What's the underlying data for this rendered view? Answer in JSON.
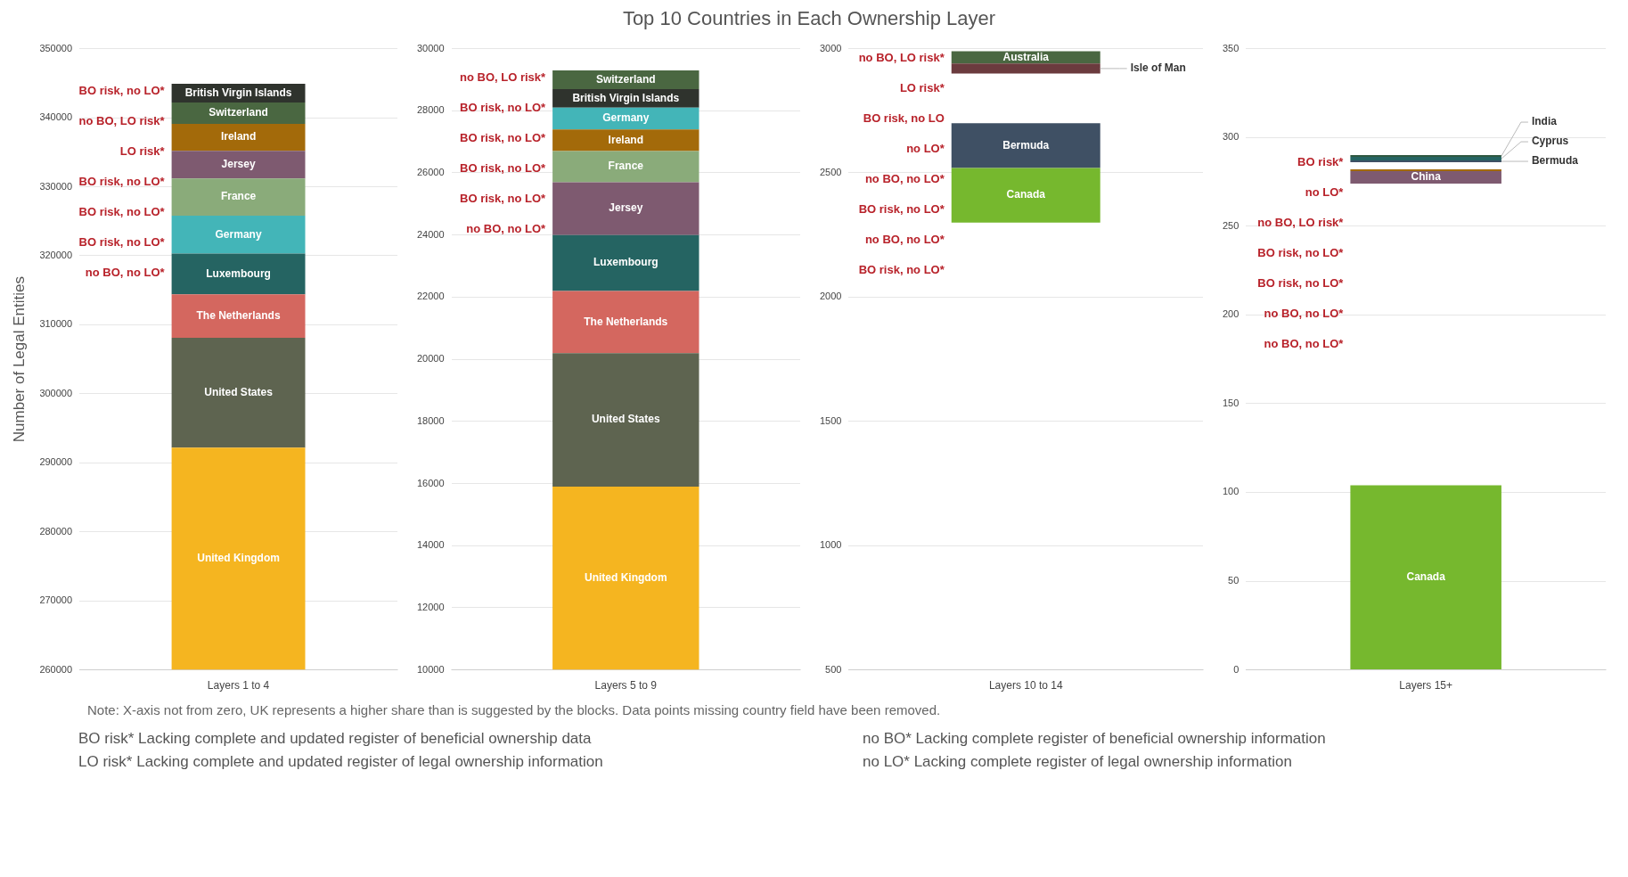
{
  "chart_data": [
    {
      "type": "other",
      "title": "Top 10 Countries in Each Ownership Layer"
    },
    {
      "type": "bar",
      "ylabel": "Number of Legal Entities",
      "categories": [
        "Layers 1 to 4"
      ],
      "ylim": [
        260000,
        350000
      ],
      "yticks": [
        260000,
        270000,
        280000,
        290000,
        300000,
        310000,
        320000,
        330000,
        340000,
        350000
      ],
      "grid": "y",
      "legend": false,
      "series": [
        {
          "name": "United Kingdom",
          "color": "#f5b520",
          "values": [
            32200
          ],
          "base": [
            260000
          ]
        },
        {
          "name": "United States",
          "color": "#5e6450",
          "values": [
            15900
          ],
          "base": [
            292200
          ]
        },
        {
          "name": "The Netherlands",
          "color": "#d4675f",
          "values": [
            6300
          ],
          "base": [
            308100
          ]
        },
        {
          "name": "Luxembourg",
          "color": "#256462",
          "values": [
            5900
          ],
          "base": [
            314400
          ]
        },
        {
          "name": "Germany",
          "color": "#43b5b8",
          "values": [
            5500
          ],
          "base": [
            320300
          ]
        },
        {
          "name": "France",
          "color": "#8aab7a",
          "values": [
            5400
          ],
          "base": [
            325800
          ]
        },
        {
          "name": "Jersey",
          "color": "#7e5a70",
          "values": [
            4000
          ],
          "base": [
            331200
          ]
        },
        {
          "name": "Ireland",
          "color": "#a36a0a",
          "values": [
            3900
          ],
          "base": [
            335200
          ]
        },
        {
          "name": "Switzerland",
          "color": "#4a6741",
          "values": [
            3100
          ],
          "base": [
            339100
          ]
        },
        {
          "name": "British Virgin Islands",
          "color": "#2f332d",
          "values": [
            2700
          ],
          "base": [
            342200
          ]
        }
      ],
      "annotations": [
        "BO risk, no LO*",
        "no BO, LO risk*",
        "LO risk*",
        "BO risk, no LO*",
        "BO risk, no LO*",
        "BO risk, no LO*",
        "no BO, no LO*"
      ]
    },
    {
      "type": "bar",
      "categories": [
        "Layers 5 to 9"
      ],
      "ylim": [
        10000,
        30000
      ],
      "yticks": [
        10000,
        12000,
        14000,
        16000,
        18000,
        20000,
        22000,
        24000,
        26000,
        28000,
        30000
      ],
      "grid": "y",
      "legend": false,
      "series": [
        {
          "name": "United Kingdom",
          "color": "#f5b520",
          "values": [
            5900
          ],
          "base": [
            10000
          ]
        },
        {
          "name": "United States",
          "color": "#5e6450",
          "values": [
            4300
          ],
          "base": [
            15900
          ]
        },
        {
          "name": "The Netherlands",
          "color": "#d4675f",
          "values": [
            2000
          ],
          "base": [
            20200
          ]
        },
        {
          "name": "Luxembourg",
          "color": "#256462",
          "values": [
            1800
          ],
          "base": [
            22200
          ]
        },
        {
          "name": "Jersey",
          "color": "#7e5a70",
          "values": [
            1700
          ],
          "base": [
            24000
          ]
        },
        {
          "name": "France",
          "color": "#8aab7a",
          "values": [
            1000
          ],
          "base": [
            25700
          ]
        },
        {
          "name": "Ireland",
          "color": "#a36a0a",
          "values": [
            700
          ],
          "base": [
            26700
          ]
        },
        {
          "name": "Germany",
          "color": "#43b5b8",
          "values": [
            700
          ],
          "base": [
            27400
          ]
        },
        {
          "name": "British Virgin Islands",
          "color": "#2f332d",
          "values": [
            600
          ],
          "base": [
            28100
          ]
        },
        {
          "name": "Switzerland",
          "color": "#4a6741",
          "values": [
            600
          ],
          "base": [
            28700
          ]
        }
      ],
      "annotations": [
        "no BO, LO risk*",
        "BO risk, no LO*",
        "BO risk, no LO*",
        "BO risk, no LO*",
        "BO risk, no LO*",
        "no BO, no LO*"
      ]
    },
    {
      "type": "bar",
      "categories": [
        "Layers 10 to 14"
      ],
      "ylim": [
        500,
        3000
      ],
      "yticks": [
        500,
        1000,
        1500,
        2000,
        2500,
        3000
      ],
      "grid": "y",
      "legend": false,
      "series": [
        {
          "name": "Canada",
          "color": "#76b82e",
          "values": [
            220
          ],
          "base": [
            2300
          ]
        },
        {
          "name": "Bermuda",
          "color": "#3f5064",
          "values": [
            180
          ],
          "base": [
            2520
          ]
        },
        {
          "name": "Isle of Man",
          "color": "#6b3b3e",
          "values": [
            40
          ],
          "base": [
            2900
          ]
        },
        {
          "name": "Australia",
          "color": "#4a6741",
          "values": [
            50
          ],
          "base": [
            2940
          ]
        }
      ],
      "annotations": [
        "no BO, LO risk*",
        "LO risk*",
        "BO risk, no LO",
        "no LO*",
        "no BO, no LO*",
        "BO risk, no LO*",
        "no BO, no LO*",
        "BO risk, no LO*"
      ]
    },
    {
      "type": "bar",
      "categories": [
        "Layers 15+"
      ],
      "ylim": [
        0,
        350
      ],
      "yticks": [
        0,
        50,
        100,
        150,
        200,
        250,
        300,
        350
      ],
      "grid": "y",
      "legend": false,
      "series": [
        {
          "name": "Canada",
          "color": "#76b82e",
          "values": [
            104
          ],
          "base": [
            0
          ]
        },
        {
          "name": "China",
          "color": "#7e5a70",
          "values": [
            7
          ],
          "base": [
            274
          ]
        },
        {
          "color": "#a36a0a",
          "values": [
            1
          ],
          "base": [
            281
          ]
        },
        {
          "name": "Bermuda",
          "color": "#3f5064",
          "values": [
            1
          ],
          "base": [
            286
          ]
        },
        {
          "name": "Cyprus",
          "color": "#256462",
          "values": [
            2
          ],
          "base": [
            287
          ]
        },
        {
          "name": "India",
          "color": "#2e5840",
          "values": [
            1
          ],
          "base": [
            289
          ]
        }
      ],
      "annotations": [
        "BO risk*",
        "no LO*",
        "no BO, LO risk*",
        "BO risk, no LO*",
        "BO risk, no LO*",
        "no BO, no LO*",
        "no BO, no LO*"
      ]
    },
    {
      "type": "other",
      "annotations": [
        "Note: X-axis not from zero, UK represents a higher share than is suggested by the blocks. Data points missing country field have been removed.",
        "BO risk* Lacking complete and updated register of beneficial ownership data",
        "LO risk* Lacking complete and updated register of legal ownership information",
        "no BO* Lacking complete register of beneficial ownership information",
        "no LO* Lacking complete register of legal ownership information"
      ]
    }
  ]
}
